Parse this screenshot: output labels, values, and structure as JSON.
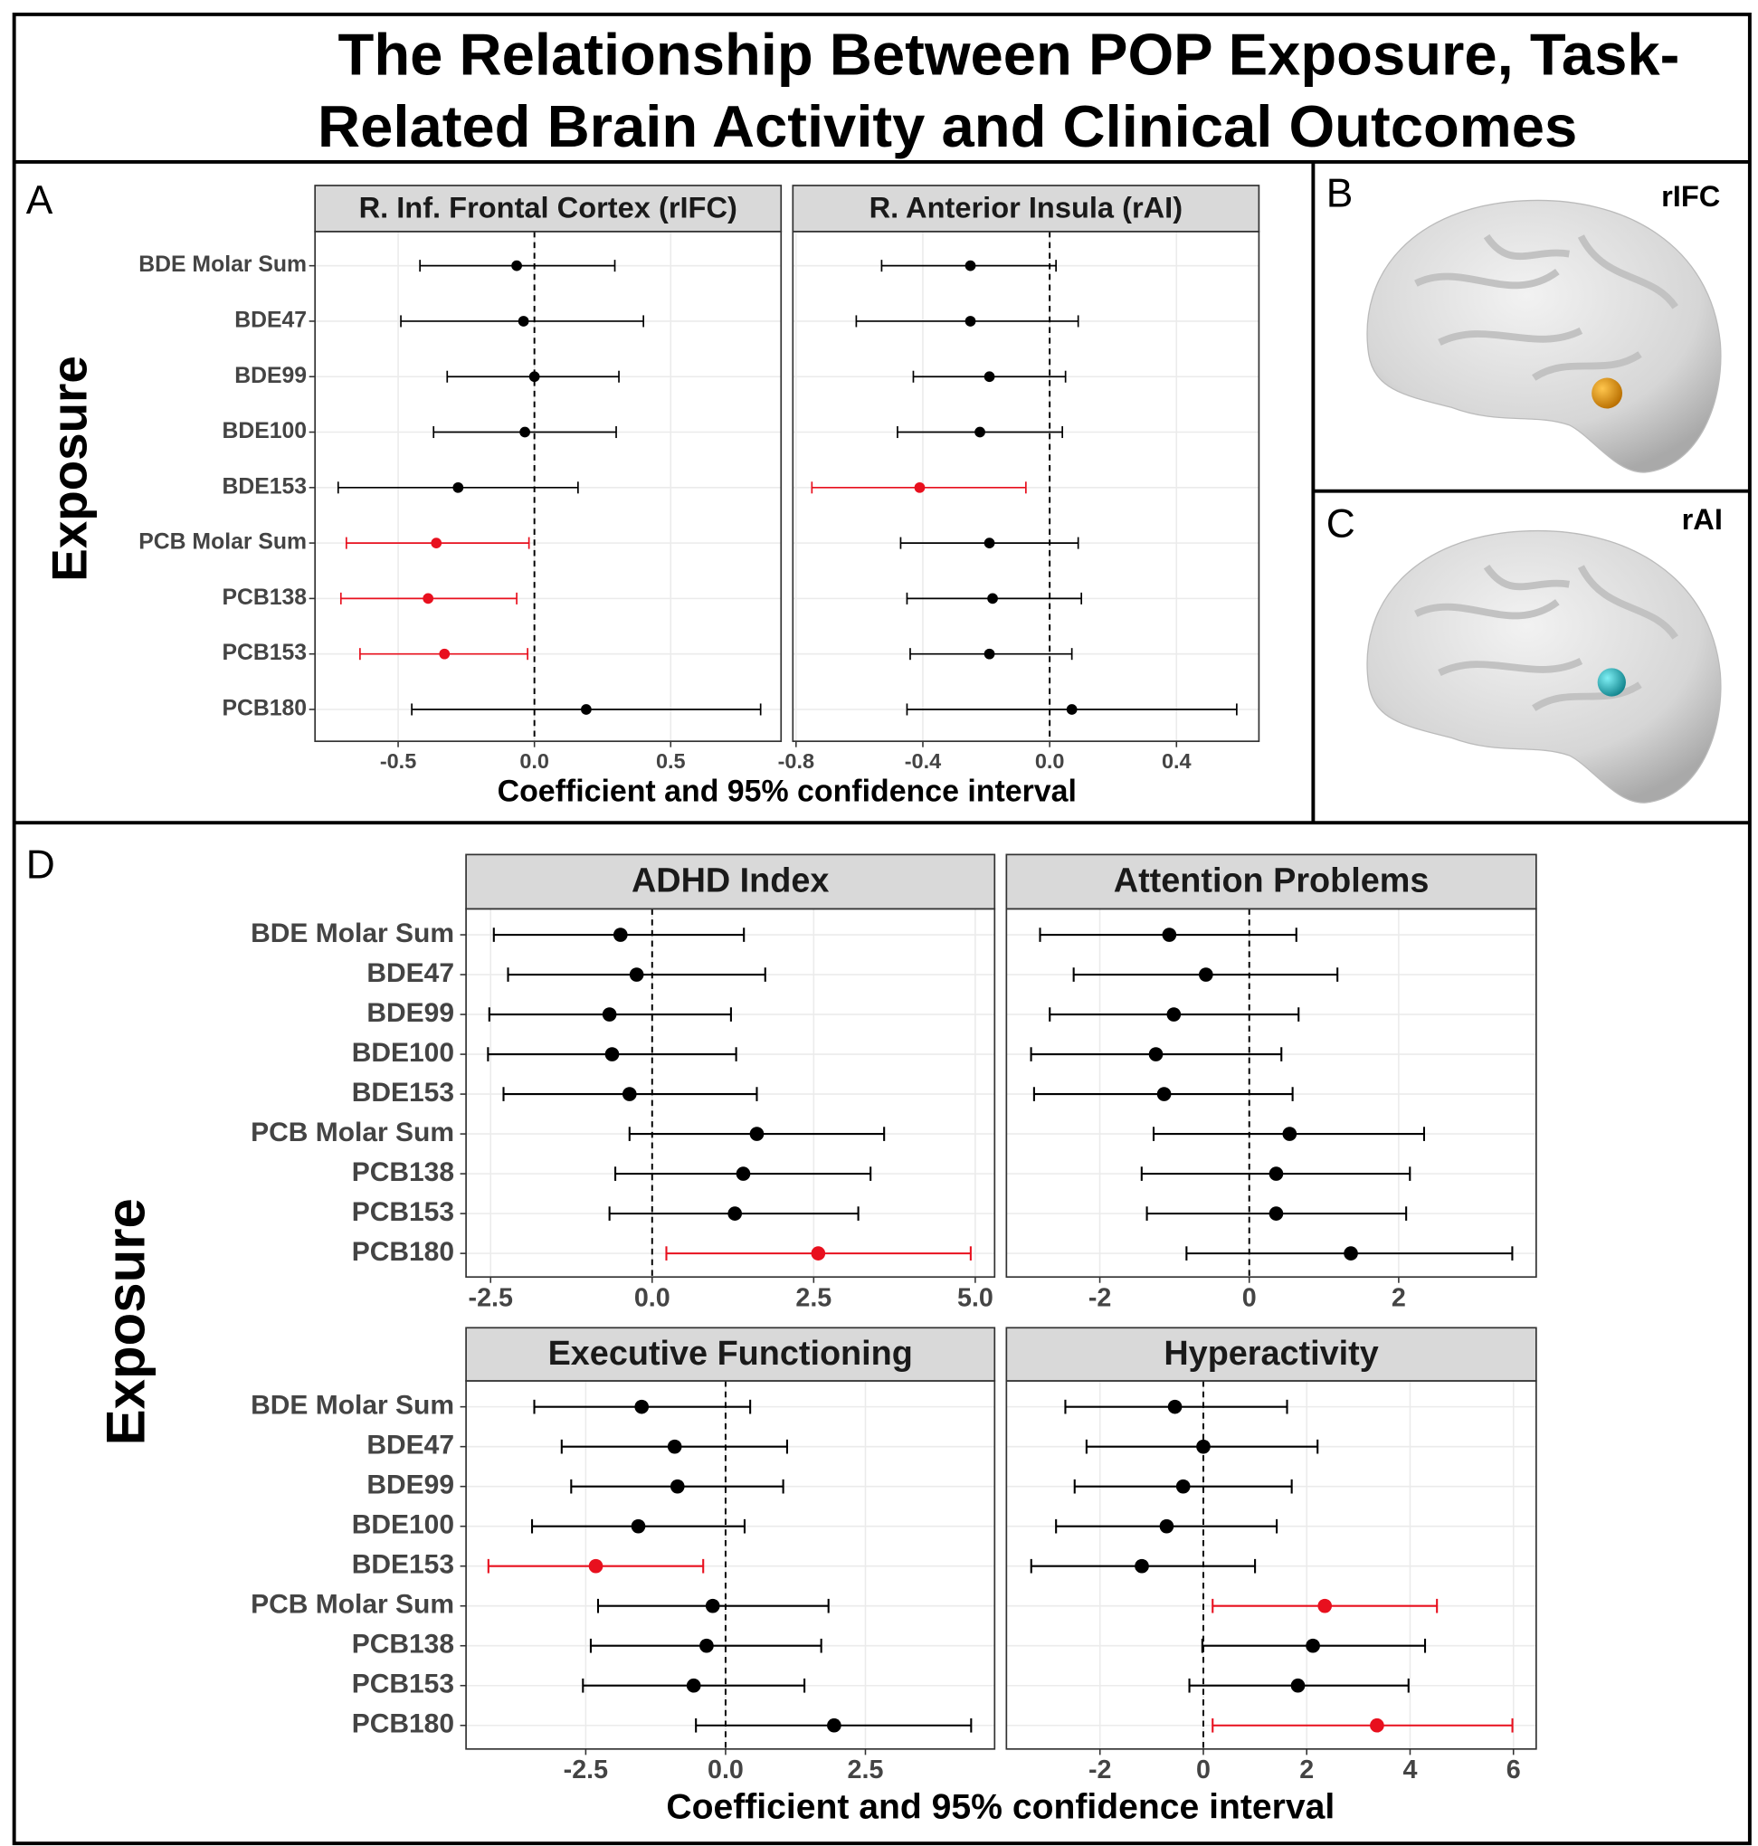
{
  "title_lines": [
    "The Relationship Between POP Exposure, Task-",
    "Related Brain Activity and Clinical Outcomes"
  ],
  "panel_labels": [
    "A",
    "B",
    "C",
    "D"
  ],
  "brain_labels": [
    "rIFC",
    "rAI"
  ],
  "panel_a": {
    "y_label": "Exposure",
    "x_label": "Coefficient and 95% confidence interval"
  },
  "panel_d": {
    "y_label": "Exposure",
    "x_label": "Coefficient and 95% confidence interval"
  },
  "chart_data": [
    {
      "type": "forest",
      "title": "R. Inf. Frontal Cortex (rIFC)",
      "categories": [
        "BDE Molar Sum",
        "BDE47",
        "BDE99",
        "BDE100",
        "BDE153",
        "PCB Molar Sum",
        "PCB138",
        "PCB153",
        "PCB180"
      ],
      "values": [
        -0.065,
        -0.04,
        0.0,
        -0.035,
        -0.28,
        -0.36,
        -0.39,
        -0.33,
        0.19
      ],
      "lower": [
        -0.42,
        -0.49,
        -0.32,
        -0.37,
        -0.72,
        -0.69,
        -0.71,
        -0.64,
        -0.45
      ],
      "upper": [
        0.295,
        0.4,
        0.31,
        0.3,
        0.16,
        -0.02,
        -0.065,
        -0.025,
        0.83
      ],
      "colors": [
        "#000000",
        "#000000",
        "#000000",
        "#000000",
        "#000000",
        "#e8101e",
        "#e8101e",
        "#e8101e",
        "#000000"
      ],
      "xlim": [
        -0.805,
        0.905
      ],
      "xticks": [
        -0.5,
        {
          "value": 0,
          "label": "0.0"
        },
        0.5
      ],
      "grid": true
    },
    {
      "type": "forest",
      "title": "R. Anterior Insula (rAI)",
      "values": [
        -0.25,
        -0.25,
        -0.19,
        -0.22,
        -0.41,
        -0.19,
        -0.18,
        -0.19,
        0.07
      ],
      "lower": [
        -0.53,
        -0.61,
        -0.43,
        -0.48,
        -0.75,
        -0.47,
        -0.45,
        -0.44,
        -0.45
      ],
      "upper": [
        0.02,
        0.09,
        0.05,
        0.04,
        -0.075,
        0.09,
        0.1,
        0.07,
        0.59
      ],
      "colors": [
        "#000000",
        "#000000",
        "#000000",
        "#000000",
        "#e8101e",
        "#000000",
        "#000000",
        "#000000",
        "#000000"
      ],
      "xlim": [
        -0.81,
        0.66
      ],
      "xticks": [
        -0.8,
        -0.4,
        {
          "value": 0,
          "label": "0.0"
        },
        0.4
      ],
      "grid": true
    },
    {
      "type": "forest",
      "title": "ADHD Index",
      "categories": [
        "BDE Molar Sum",
        "BDE47",
        "BDE99",
        "BDE100",
        "BDE153",
        "PCB Molar Sum",
        "PCB138",
        "PCB153",
        "PCB180"
      ],
      "values": [
        -0.49,
        -0.24,
        -0.66,
        -0.62,
        -0.35,
        1.62,
        1.41,
        1.28,
        2.57
      ],
      "lower": [
        -2.45,
        -2.23,
        -2.52,
        -2.54,
        -2.3,
        -0.35,
        -0.57,
        -0.66,
        0.22
      ],
      "upper": [
        1.42,
        1.75,
        1.22,
        1.3,
        1.62,
        3.59,
        3.38,
        3.19,
        4.93
      ],
      "colors": [
        "#000000",
        "#000000",
        "#000000",
        "#000000",
        "#000000",
        "#000000",
        "#000000",
        "#000000",
        "#e8101e"
      ],
      "xlim": [
        -2.88,
        5.3
      ],
      "xticks": [
        -2.5,
        {
          "value": 0,
          "label": "0.0"
        },
        2.5,
        {
          "value": 5,
          "label": "5.0"
        }
      ],
      "grid": true
    },
    {
      "type": "forest",
      "title": "Attention Problems",
      "values": [
        -1.07,
        -0.58,
        -1.01,
        -1.25,
        -1.14,
        0.54,
        0.36,
        0.36,
        1.36
      ],
      "lower": [
        -2.8,
        -2.35,
        -2.67,
        -2.92,
        -2.88,
        -1.28,
        -1.44,
        -1.37,
        -0.84
      ],
      "upper": [
        0.63,
        1.18,
        0.66,
        0.43,
        0.58,
        2.34,
        2.15,
        2.1,
        3.52
      ],
      "colors": [
        "#000000",
        "#000000",
        "#000000",
        "#000000",
        "#000000",
        "#000000",
        "#000000",
        "#000000",
        "#000000"
      ],
      "xlim": [
        -3.25,
        3.84
      ],
      "xticks": [
        -2,
        0,
        2
      ],
      "grid": true
    },
    {
      "type": "forest",
      "title": "Executive Functioning",
      "categories": [
        "BDE Molar Sum",
        "BDE47",
        "BDE99",
        "BDE100",
        "BDE153",
        "PCB Molar Sum",
        "PCB138",
        "PCB153",
        "PCB180"
      ],
      "values": [
        -1.5,
        -0.91,
        -0.86,
        -1.56,
        -2.32,
        -0.23,
        -0.34,
        -0.57,
        1.94
      ],
      "lower": [
        -3.42,
        -2.93,
        -2.76,
        -3.46,
        -4.24,
        -2.28,
        -2.41,
        -2.55,
        -0.53
      ],
      "upper": [
        0.44,
        1.1,
        1.03,
        0.34,
        -0.4,
        1.84,
        1.71,
        1.41,
        4.39
      ],
      "colors": [
        "#000000",
        "#000000",
        "#000000",
        "#000000",
        "#e8101e",
        "#000000",
        "#000000",
        "#000000",
        "#000000"
      ],
      "xlim": [
        -4.64,
        4.81
      ],
      "xticks": [
        -2.5,
        {
          "value": 0,
          "label": "0.0"
        },
        2.5
      ],
      "grid": true
    },
    {
      "type": "forest",
      "title": "Hyperactivity",
      "values": [
        -0.55,
        0.0,
        -0.39,
        -0.71,
        -1.19,
        2.35,
        2.12,
        1.83,
        3.36
      ],
      "lower": [
        -2.67,
        -2.26,
        -2.49,
        -2.85,
        -3.33,
        0.18,
        -0.02,
        -0.27,
        0.18
      ],
      "upper": [
        1.62,
        2.21,
        1.71,
        1.42,
        1.0,
        4.52,
        4.29,
        3.97,
        5.98
      ],
      "colors": [
        "#000000",
        "#000000",
        "#000000",
        "#000000",
        "#000000",
        "#e8101e",
        "#000000",
        "#000000",
        "#e8101e"
      ],
      "xlim": [
        -3.81,
        6.44
      ],
      "xticks": [
        -2,
        0,
        2,
        4,
        6
      ],
      "grid": true
    }
  ]
}
